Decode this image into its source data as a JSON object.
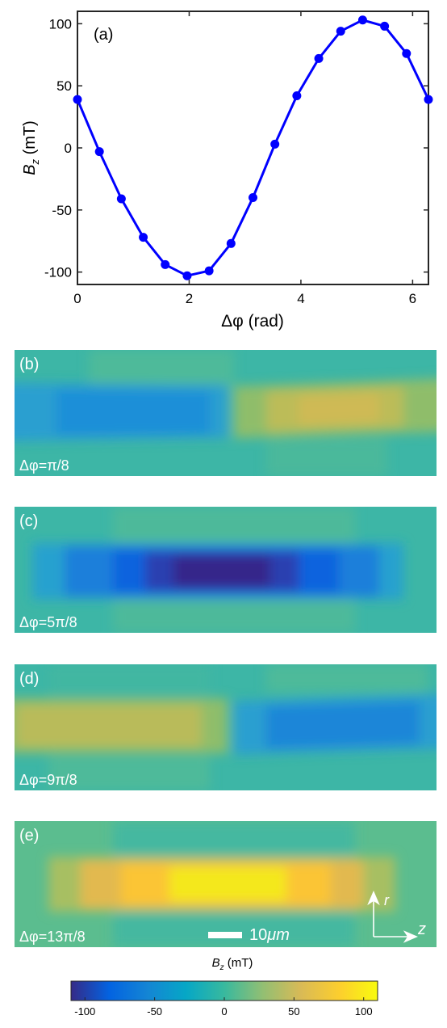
{
  "chart_data": [
    {
      "panel": "(a)",
      "type": "line",
      "xlabel_greek": "Δφ",
      "xlabel_unit": "(rad)",
      "ylabel_sym": "B",
      "ylabel_sub": "z",
      "ylabel_unit": "(mT)",
      "xlim": [
        0,
        6.2832
      ],
      "ylim": [
        -110,
        110
      ],
      "xticks": [
        0,
        2,
        4,
        6
      ],
      "yticks": [
        -100,
        -50,
        0,
        50,
        100
      ],
      "x": [
        0,
        0.3927,
        0.7854,
        1.1781,
        1.5708,
        1.9635,
        2.3562,
        2.7489,
        3.1416,
        3.5343,
        3.927,
        4.3197,
        4.7124,
        5.1051,
        5.4978,
        5.8905,
        6.2832
      ],
      "y": [
        39,
        -3,
        -41,
        -72,
        -94,
        -103,
        -99,
        -77,
        -40,
        3,
        42,
        72,
        94,
        103,
        98,
        76,
        39
      ],
      "color": "#0000ff"
    },
    {
      "panel": "(b)",
      "type": "heatmap",
      "label": "Δφ=π/8",
      "field": "b"
    },
    {
      "panel": "(c)",
      "type": "heatmap",
      "label": "Δφ=5π/8",
      "field": "c"
    },
    {
      "panel": "(d)",
      "type": "heatmap",
      "label": "Δφ=9π/8",
      "field": "d"
    },
    {
      "panel": "(e)",
      "type": "heatmap",
      "label": "Δφ=13π/8",
      "field": "e"
    }
  ],
  "scalebar": {
    "label": "10",
    "unit": "μm"
  },
  "axes_arrows": {
    "r": "r",
    "z": "z"
  },
  "colorbar": {
    "title_sym": "B",
    "title_sub": "z",
    "title_unit": "(mT)",
    "range": [
      -110,
      110
    ],
    "ticks": [
      -100,
      -50,
      0,
      50,
      100
    ],
    "colormap": "parula"
  }
}
